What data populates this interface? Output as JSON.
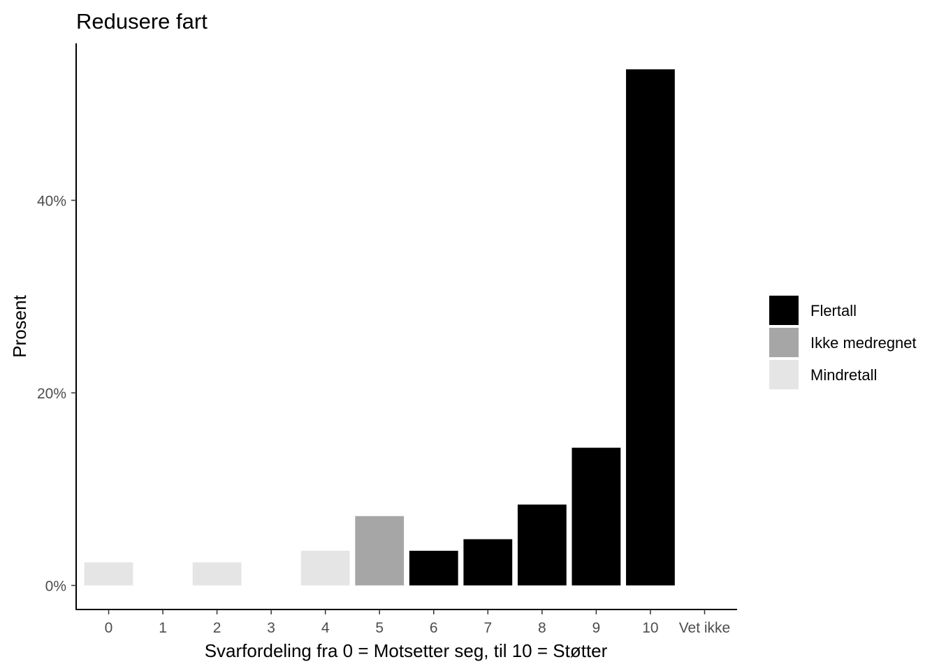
{
  "chart_data": {
    "type": "bar",
    "title": "Redusere fart",
    "xlabel": "Svarfordeling fra 0 = Motsetter seg, til 10 = Støtter",
    "ylabel": "Prosent",
    "categories": [
      "0",
      "1",
      "2",
      "3",
      "4",
      "5",
      "6",
      "7",
      "8",
      "9",
      "10",
      "Vet ikke"
    ],
    "values": [
      2.4,
      0,
      2.4,
      0,
      3.6,
      7.2,
      3.6,
      4.8,
      8.4,
      14.3,
      53.6,
      0
    ],
    "groups": [
      "Mindretall",
      "Mindretall",
      "Mindretall",
      "Mindretall",
      "Mindretall",
      "Ikke medregnet",
      "Flertall",
      "Flertall",
      "Flertall",
      "Flertall",
      "Flertall",
      "Mindretall"
    ],
    "yticks": [
      0,
      20,
      40
    ],
    "ytick_labels": [
      "0%",
      "20%",
      "40%"
    ],
    "ylim": [
      -2.5,
      56.3
    ],
    "grid": false,
    "legend": {
      "placement": "right",
      "entries": [
        {
          "name": "Flertall",
          "color": "#000000"
        },
        {
          "name": "Ikke medregnet",
          "color": "#a6a6a6"
        },
        {
          "name": "Mindretall",
          "color": "#e5e5e5"
        }
      ]
    }
  }
}
